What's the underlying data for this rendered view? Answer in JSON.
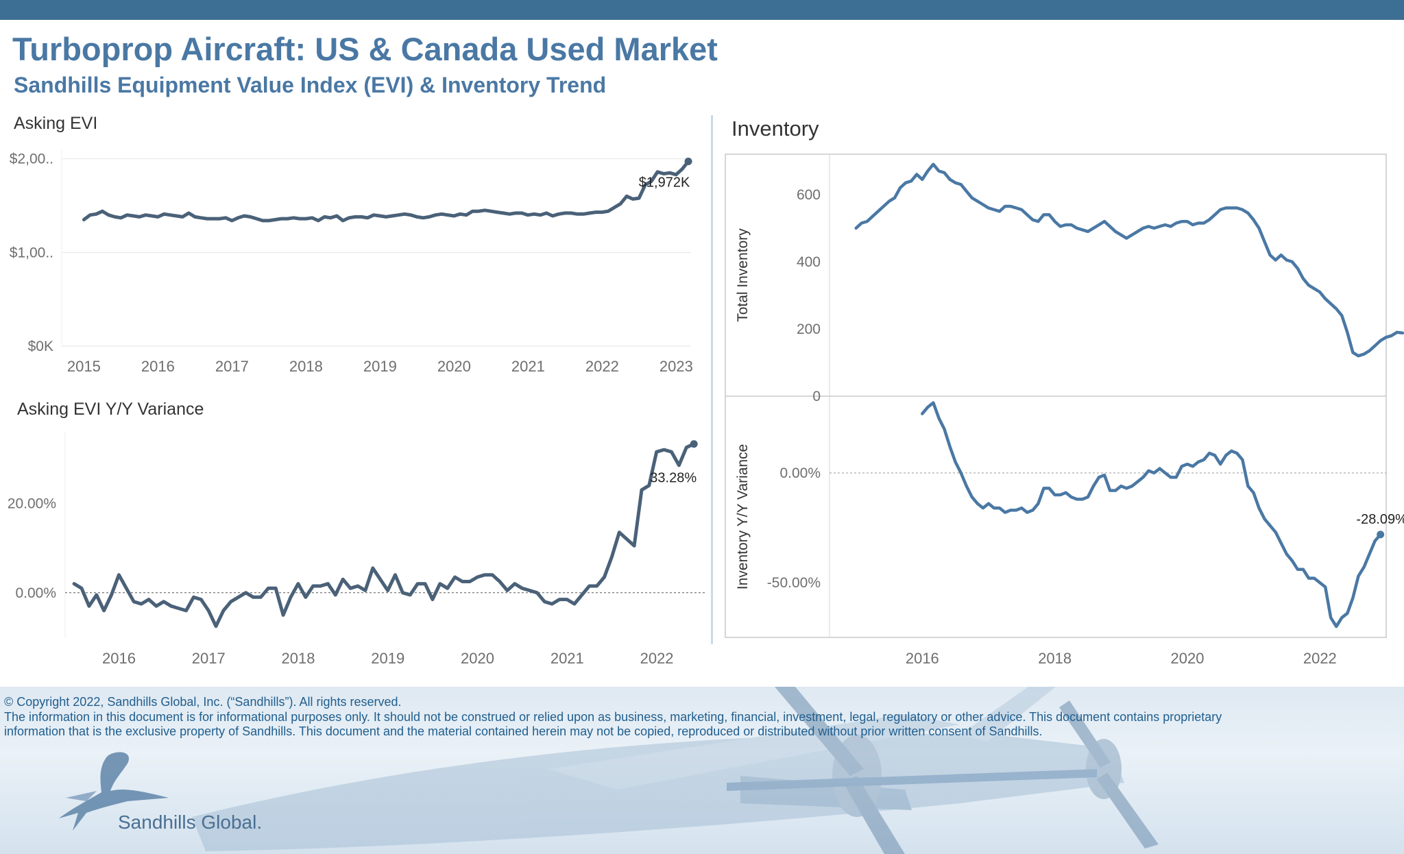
{
  "header": {
    "title": "Turboprop Aircraft:  US & Canada Used Market",
    "subtitle": "Sandhills Equipment Value Index (EVI) & Inventory Trend"
  },
  "colors": {
    "brand": "#4a78a4",
    "topbar": "#3d6e93",
    "evi_line": "#4a6178",
    "inventory_line": "#4a78a4",
    "footer_text": "#1f5e8e"
  },
  "chart_data": [
    {
      "id": "asking_evi",
      "type": "line",
      "title": "Asking EVI",
      "xlabel": "",
      "ylabel": "",
      "x_ticks": [
        "2015",
        "2016",
        "2017",
        "2018",
        "2019",
        "2020",
        "2021",
        "2022",
        "2023"
      ],
      "y_ticks": [
        "$0K",
        "$1,00..",
        "$2,00.."
      ],
      "ylim": [
        0,
        2100
      ],
      "xlim": [
        2014.7,
        2023.2
      ],
      "grid": true,
      "end_label": "$1,972K",
      "series": [
        {
          "x_start": 2015.0,
          "x_step": 0.0833,
          "values": [
            1350,
            1400,
            1410,
            1440,
            1400,
            1380,
            1370,
            1400,
            1390,
            1380,
            1400,
            1390,
            1380,
            1410,
            1400,
            1390,
            1380,
            1420,
            1380,
            1370,
            1360,
            1360,
            1360,
            1370,
            1340,
            1370,
            1390,
            1380,
            1360,
            1340,
            1340,
            1350,
            1360,
            1360,
            1370,
            1360,
            1360,
            1370,
            1340,
            1380,
            1370,
            1390,
            1340,
            1370,
            1380,
            1380,
            1370,
            1400,
            1390,
            1380,
            1390,
            1400,
            1410,
            1400,
            1380,
            1370,
            1380,
            1400,
            1410,
            1400,
            1390,
            1410,
            1400,
            1440,
            1440,
            1450,
            1440,
            1430,
            1420,
            1410,
            1420,
            1420,
            1400,
            1410,
            1400,
            1420,
            1390,
            1410,
            1420,
            1420,
            1410,
            1410,
            1420,
            1430,
            1430,
            1440,
            1480,
            1520,
            1600,
            1570,
            1580,
            1720,
            1760,
            1860,
            1840,
            1850,
            1830,
            1890,
            1972
          ]
        }
      ]
    },
    {
      "id": "asking_evi_yoy",
      "type": "line",
      "title": "Asking EVI Y/Y Variance",
      "xlabel": "",
      "ylabel": "",
      "x_ticks": [
        "2016",
        "2017",
        "2018",
        "2019",
        "2020",
        "2021",
        "2022"
      ],
      "y_ticks": [
        "0.00%",
        "20.00%"
      ],
      "ylim": [
        -10,
        36
      ],
      "xlim": [
        2015.4,
        2022.55
      ],
      "zero_line": true,
      "end_label": "33.28%",
      "series": [
        {
          "x_start": 2015.5,
          "x_step": 0.0833,
          "values": [
            2,
            1,
            -3,
            -0.5,
            -4,
            -0.5,
            4,
            1,
            -2,
            -2.5,
            -1.5,
            -3,
            -2,
            -3,
            -3.5,
            -4,
            -1,
            -1.5,
            -4,
            -7.5,
            -4,
            -2,
            -1,
            0,
            -1,
            -1,
            1,
            1,
            -5,
            -1,
            2,
            -1,
            1.5,
            1.5,
            2,
            -0.5,
            3,
            1,
            1.5,
            0.5,
            5.5,
            3,
            0.5,
            4,
            0,
            -0.5,
            2,
            2,
            -1.5,
            2,
            1,
            3.5,
            2.5,
            2.5,
            3.5,
            4,
            4,
            2.5,
            0.5,
            2,
            1,
            0.5,
            0,
            -2,
            -2.5,
            -1.5,
            -1.5,
            -2.5,
            -0.5,
            1.5,
            1.5,
            3.5,
            8,
            13.5,
            12,
            10.5,
            23,
            24,
            31.5,
            32,
            31.5,
            28.5,
            32.5,
            33.28
          ]
        }
      ]
    },
    {
      "id": "inventory",
      "type": "line",
      "title": "Inventory",
      "xlabel": "",
      "ylabel": "Total Inventory",
      "x_ticks": [],
      "y_ticks": [
        "0",
        "200",
        "400",
        "600"
      ],
      "ylim": [
        0,
        720
      ],
      "xlim": [
        2014.6,
        2023.0
      ],
      "series": [
        {
          "x_start": 2015.0,
          "x_step": 0.0833,
          "values": [
            500,
            515,
            520,
            535,
            550,
            565,
            580,
            590,
            620,
            635,
            640,
            660,
            645,
            670,
            690,
            670,
            665,
            645,
            635,
            630,
            610,
            590,
            580,
            570,
            560,
            555,
            550,
            565,
            565,
            560,
            555,
            540,
            525,
            520,
            540,
            540,
            520,
            505,
            510,
            510,
            500,
            495,
            490,
            500,
            510,
            520,
            505,
            490,
            480,
            470,
            480,
            490,
            500,
            505,
            500,
            505,
            510,
            505,
            515,
            520,
            520,
            510,
            515,
            515,
            525,
            540,
            555,
            560,
            560,
            560,
            555,
            545,
            525,
            500,
            460,
            420,
            405,
            420,
            405,
            400,
            380,
            350,
            330,
            320,
            310,
            290,
            275,
            260,
            240,
            190,
            130,
            120,
            125,
            135,
            150,
            165,
            175,
            180,
            190,
            188
          ]
        }
      ]
    },
    {
      "id": "inventory_yoy",
      "type": "line",
      "title": "",
      "xlabel": "",
      "ylabel": "Inventory  Y/Y Variance",
      "x_ticks": [
        "2016",
        "2018",
        "2020",
        "2022"
      ],
      "y_ticks": [
        "-50.00%",
        "0.00%"
      ],
      "ylim": [
        -75,
        35
      ],
      "xlim": [
        2014.6,
        2023.0
      ],
      "zero_line": true,
      "end_label": "-28.09%",
      "series": [
        {
          "x_start": 2016.0,
          "x_step": 0.0833,
          "values": [
            27,
            30,
            32,
            25,
            20,
            12,
            5,
            0,
            -6,
            -11,
            -14,
            -16,
            -14,
            -16,
            -16,
            -18,
            -17,
            -17,
            -16,
            -18,
            -17,
            -14,
            -7,
            -7,
            -10,
            -10,
            -9,
            -11,
            -12,
            -12,
            -11,
            -6,
            -2,
            -1,
            -8,
            -8,
            -6,
            -7,
            -6,
            -4,
            -2,
            1,
            0,
            2,
            0,
            -2,
            -2,
            3,
            4,
            3,
            5,
            6,
            9,
            8,
            4,
            8,
            10,
            9,
            6,
            -6,
            -9,
            -16,
            -21,
            -24,
            -27,
            -32,
            -37,
            -40,
            -44,
            -44,
            -48,
            -48,
            -50,
            -52,
            -66,
            -70,
            -66,
            -64,
            -57,
            -47,
            -43,
            -37,
            -31,
            -28.09
          ]
        }
      ]
    }
  ],
  "footer": {
    "copyright": "© Copyright 2022, Sandhills Global, Inc. (“Sandhills”). All rights reserved.",
    "disclaimer_line1": "The information in this document is for informational purposes only.  It should not be construed or relied upon as business, marketing, financial, investment, legal, regulatory or other advice. This document contains proprietary",
    "disclaimer_line2": "information that is the exclusive property of Sandhills. This document and the material contained herein may not be copied, reproduced or distributed without prior written consent of Sandhills.",
    "logo": "Sandhills Global."
  }
}
